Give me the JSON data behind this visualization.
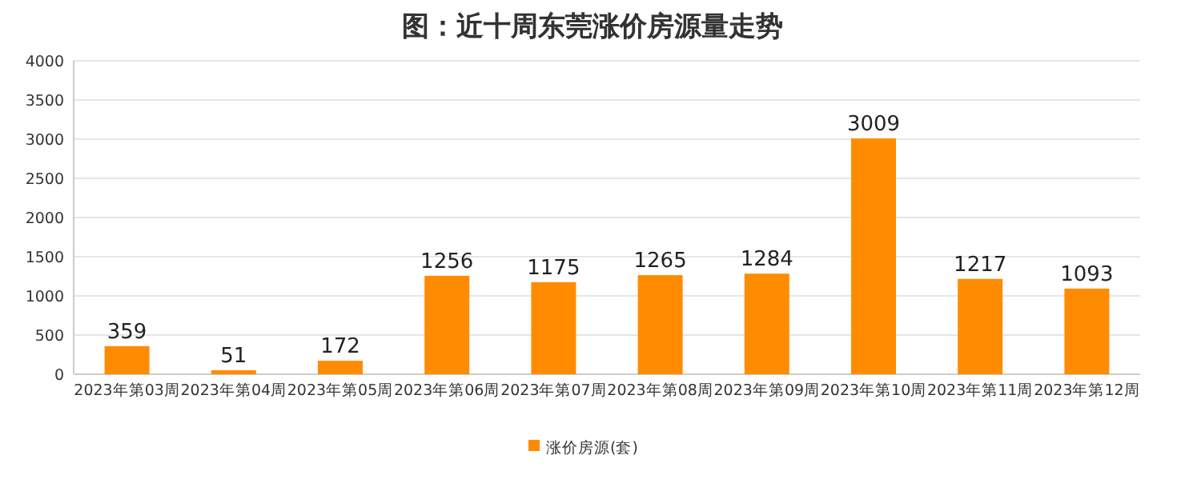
{
  "chart_data": {
    "type": "bar",
    "title": "图：近十周东莞涨价房源量走势",
    "categories": [
      "2023年第03周",
      "2023年第04周",
      "2023年第05周",
      "2023年第06周",
      "2023年第07周",
      "2023年第08周",
      "2023年第09周",
      "2023年第10周",
      "2023年第11周",
      "2023年第12周"
    ],
    "series": [
      {
        "name": "涨价房源(套)",
        "color": "#ff8c00",
        "values": [
          359,
          51,
          172,
          1256,
          1175,
          1265,
          1284,
          3009,
          1217,
          1093
        ]
      }
    ],
    "ylim": [
      0,
      4000
    ],
    "yticks": [
      0,
      500,
      1000,
      1500,
      2000,
      2500,
      3000,
      3500,
      4000
    ],
    "grid": "y",
    "legend": "bottom",
    "data_labels": true
  }
}
